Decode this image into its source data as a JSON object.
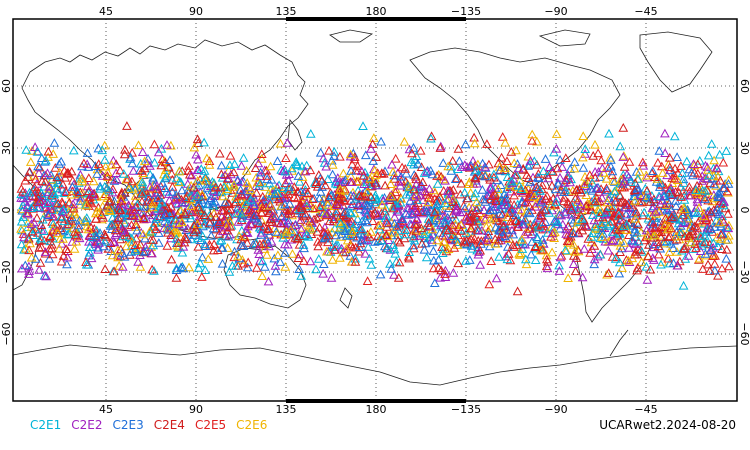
{
  "map": {
    "x_ticks": [
      "45",
      "90",
      "135",
      "180",
      "−135",
      "−90",
      "−45"
    ],
    "y_ticks": [
      "60",
      "30",
      "0",
      "−30",
      "−60"
    ],
    "latitude_band": [
      -42,
      42
    ],
    "grid": "dotted",
    "marker": "open-triangle",
    "colors": {
      "C2E1": "#00b4d8",
      "C2E2": "#a020c0",
      "C2E3": "#1e6fd9",
      "C2E4": "#d01c1c",
      "C2E5": "#e02020",
      "C2E6": "#f0b400"
    }
  },
  "legend": [
    {
      "label": "C2E1",
      "color": "#00b4d8"
    },
    {
      "label": "C2E2",
      "color": "#a020c0"
    },
    {
      "label": "C2E3",
      "color": "#1e6fd9"
    },
    {
      "label": "C2E4",
      "color": "#d01c1c"
    },
    {
      "label": "C2E5",
      "color": "#e02020"
    },
    {
      "label": "C2E6",
      "color": "#f0b400"
    }
  ],
  "footer": "UCARwet2.2024-08-20"
}
